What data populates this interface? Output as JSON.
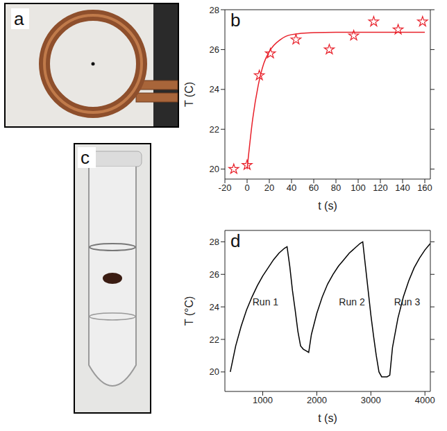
{
  "images": [
    {
      "panel": "a"
    },
    {
      "panel": "c"
    }
  ],
  "chart_data": [
    {
      "panel": "b",
      "type": "scatter",
      "x_label": "t (s)",
      "y_label": "T (C)",
      "xlim": [
        -20,
        165
      ],
      "xticks": [
        -20,
        0,
        20,
        40,
        60,
        80,
        100,
        120,
        140,
        160
      ],
      "ylim": [
        19.5,
        28
      ],
      "yticks": [
        20,
        22,
        24,
        26,
        28
      ],
      "series": [
        {
          "type": "scatter",
          "color": "#e8202a",
          "marker": "star",
          "x": [
            -12,
            0,
            11,
            21,
            44,
            74,
            96,
            114,
            136,
            158
          ],
          "values": [
            20.0,
            20.2,
            24.7,
            25.8,
            26.5,
            26.0,
            26.7,
            27.4,
            27.0,
            27.4
          ]
        },
        {
          "type": "line",
          "color": "#e8202a",
          "line_style": "solid",
          "x": [
            0,
            5,
            10,
            15,
            20,
            30,
            40,
            60,
            80,
            120,
            160
          ],
          "values": [
            20.0,
            22.5,
            24.2,
            25.3,
            25.9,
            26.5,
            26.75,
            26.85,
            26.87,
            26.87,
            26.87
          ]
        }
      ]
    },
    {
      "panel": "d",
      "type": "line",
      "x_label": "t (s)",
      "y_label": "T (°C)",
      "xlim": [
        300,
        4100
      ],
      "xticks": [
        1000,
        2000,
        3000,
        4000
      ],
      "ylim": [
        18.8,
        28.7
      ],
      "yticks": [
        20,
        22,
        24,
        26,
        28
      ],
      "series": [
        {
          "type": "line",
          "color": "#000000",
          "line_style": "solid",
          "x": [
            400,
            500,
            600,
            700,
            800,
            900,
            1000,
            1100,
            1200,
            1300,
            1400,
            1450,
            1500,
            1550,
            1600,
            1650,
            1700,
            1750,
            1800,
            1850,
            1900,
            2000,
            2100,
            2200,
            2300,
            2400,
            2500,
            2600,
            2700,
            2800,
            2850,
            2900,
            2950,
            3000,
            3050,
            3100,
            3150,
            3200,
            3300,
            3350,
            3400,
            3500,
            3600,
            3700,
            3800,
            3900,
            4000,
            4100
          ],
          "values": [
            20.0,
            21.6,
            22.8,
            23.8,
            24.6,
            25.3,
            25.9,
            26.4,
            26.9,
            27.3,
            27.6,
            27.7,
            26.5,
            25.0,
            23.8,
            22.5,
            21.6,
            21.4,
            21.3,
            21.2,
            22.3,
            23.6,
            24.6,
            25.4,
            26.0,
            26.5,
            26.9,
            27.3,
            27.6,
            27.9,
            28.0,
            26.5,
            25.0,
            23.5,
            22.2,
            21.0,
            20.0,
            19.7,
            19.7,
            19.8,
            21.5,
            23.3,
            24.6,
            25.6,
            26.4,
            27.0,
            27.5,
            27.9
          ]
        }
      ],
      "annotations": [
        {
          "text": "Run 1",
          "x": 1050,
          "y": 24.3
        },
        {
          "text": "Run 2",
          "x": 2650,
          "y": 24.3
        },
        {
          "text": "Run 3",
          "x": 3670,
          "y": 24.3
        }
      ]
    }
  ]
}
